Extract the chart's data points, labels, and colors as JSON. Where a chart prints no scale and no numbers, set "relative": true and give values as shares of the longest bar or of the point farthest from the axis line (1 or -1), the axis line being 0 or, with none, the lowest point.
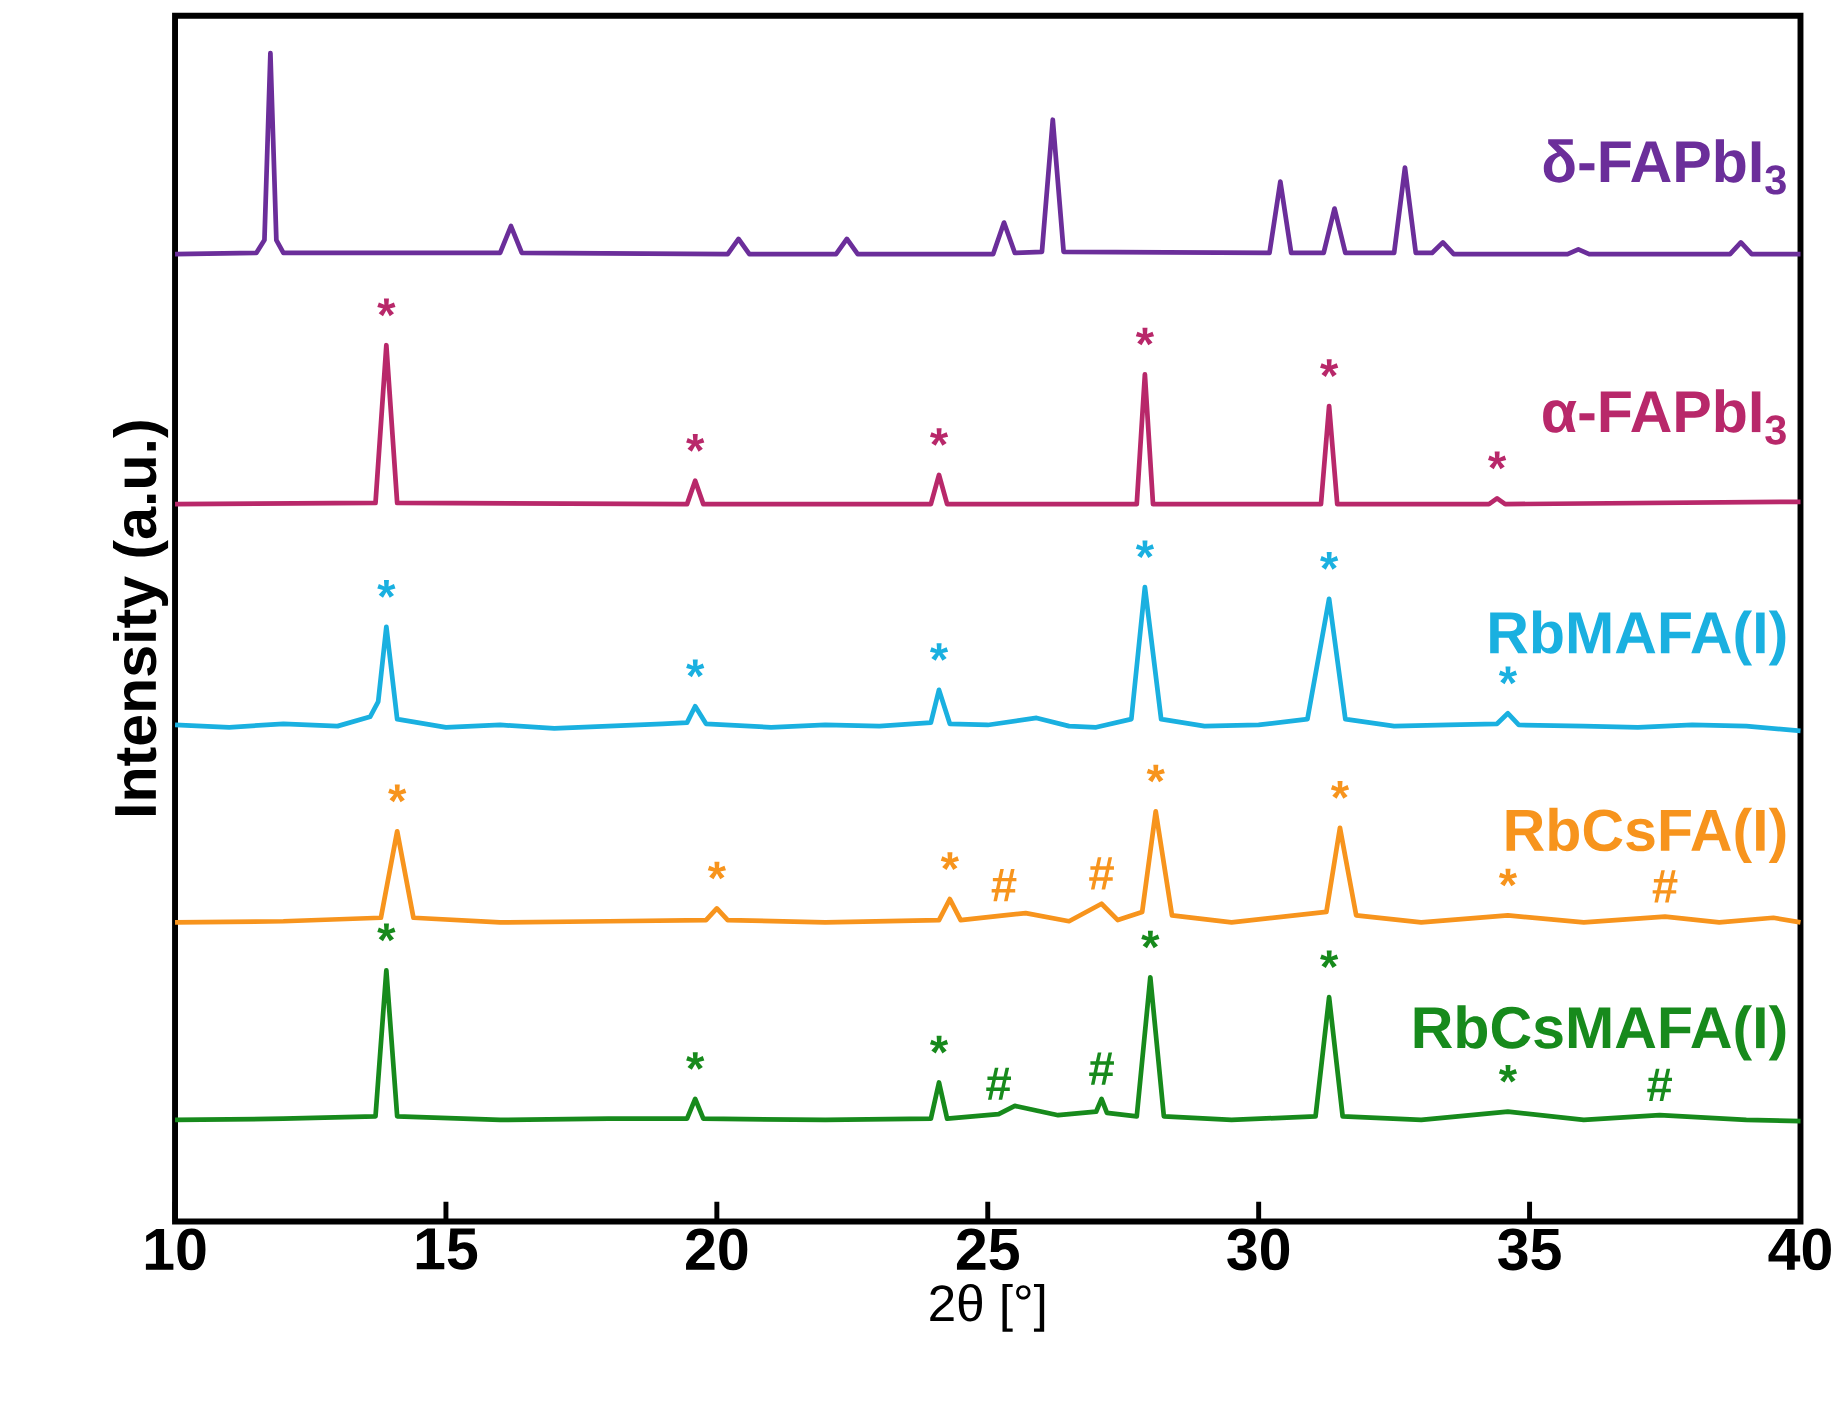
{
  "chart_data": {
    "type": "line",
    "relative": true,
    "xlabel": "2θ [°]",
    "ylabel": "Intensity (a.u.)",
    "xlim": [
      10,
      40
    ],
    "xticks": [
      10,
      15,
      20,
      25,
      30,
      35,
      40
    ],
    "series": [
      {
        "name": "δ-FAPbI$_{3}$",
        "color": "#6b2e9a",
        "x": [
          10,
          11.5,
          11.65,
          11.76,
          11.87,
          12.0,
          16.0,
          16.2,
          16.4,
          20.2,
          20.4,
          20.6,
          22.2,
          22.4,
          22.6,
          25.1,
          25.3,
          25.5,
          26.0,
          26.2,
          26.4,
          30.2,
          30.4,
          30.6,
          31.2,
          31.4,
          31.6,
          32.5,
          32.7,
          32.9,
          33.2,
          33.4,
          33.6,
          35.7,
          35.9,
          36.1,
          38.7,
          38.9,
          39.1,
          40
        ],
        "values": [
          0.828,
          0.829,
          0.84,
          1.0,
          0.84,
          0.829,
          0.829,
          0.852,
          0.829,
          0.828,
          0.841,
          0.828,
          0.828,
          0.841,
          0.828,
          0.828,
          0.855,
          0.829,
          0.83,
          0.943,
          0.83,
          0.829,
          0.89,
          0.829,
          0.829,
          0.867,
          0.829,
          0.829,
          0.902,
          0.829,
          0.829,
          0.838,
          0.828,
          0.828,
          0.832,
          0.828,
          0.828,
          0.838,
          0.828,
          0.828
        ]
      },
      {
        "name": "α-FAPbI$_{3}$",
        "color": "#b8286a",
        "x": [
          10,
          13.7,
          13.9,
          14.1,
          19.45,
          19.6,
          19.75,
          23.95,
          24.1,
          24.25,
          27.75,
          27.9,
          28.05,
          31.15,
          31.3,
          31.45,
          34.25,
          34.4,
          34.55,
          40
        ],
        "values": [
          0.614,
          0.615,
          0.75,
          0.615,
          0.614,
          0.634,
          0.614,
          0.614,
          0.639,
          0.614,
          0.614,
          0.725,
          0.614,
          0.614,
          0.698,
          0.614,
          0.614,
          0.619,
          0.614,
          0.616
        ]
      },
      {
        "name": "RbMAFA(I)",
        "color": "#1ab0e0",
        "x": [
          10,
          11,
          12,
          13,
          13.6,
          13.75,
          13.9,
          14.1,
          15,
          16,
          17,
          18,
          19,
          19.45,
          19.6,
          19.8,
          21,
          22,
          23,
          23.95,
          24.1,
          24.3,
          25,
          25.9,
          26.5,
          27,
          27.65,
          27.9,
          28.2,
          29,
          30,
          30.9,
          31.3,
          31.6,
          32.5,
          33.5,
          34.4,
          34.6,
          34.8,
          36,
          37,
          38,
          39,
          40
        ],
        "values": [
          0.425,
          0.423,
          0.426,
          0.424,
          0.432,
          0.445,
          0.509,
          0.43,
          0.423,
          0.425,
          0.422,
          0.424,
          0.426,
          0.427,
          0.441,
          0.426,
          0.423,
          0.425,
          0.424,
          0.427,
          0.455,
          0.426,
          0.425,
          0.431,
          0.424,
          0.423,
          0.43,
          0.543,
          0.43,
          0.424,
          0.425,
          0.43,
          0.533,
          0.43,
          0.424,
          0.425,
          0.426,
          0.435,
          0.425,
          0.424,
          0.423,
          0.425,
          0.424,
          0.42
        ]
      },
      {
        "name": "RbCsFA(I)",
        "color": "#f7941d",
        "x": [
          10,
          12,
          13.8,
          14.1,
          14.4,
          16,
          18,
          19.8,
          20.0,
          20.2,
          22,
          24.1,
          24.3,
          24.5,
          25.3,
          25.7,
          26.5,
          27.1,
          27.4,
          27.85,
          28.1,
          28.4,
          29.5,
          31.25,
          31.5,
          31.8,
          33,
          34.6,
          36,
          37.5,
          38.5,
          39.5,
          40
        ],
        "values": [
          0.256,
          0.257,
          0.26,
          0.334,
          0.26,
          0.256,
          0.257,
          0.258,
          0.268,
          0.258,
          0.256,
          0.258,
          0.276,
          0.258,
          0.262,
          0.264,
          0.257,
          0.272,
          0.258,
          0.265,
          0.351,
          0.262,
          0.256,
          0.265,
          0.337,
          0.262,
          0.256,
          0.262,
          0.256,
          0.261,
          0.256,
          0.26,
          0.256
        ]
      },
      {
        "name": "RbCsMAFA(I)",
        "color": "#178a1c",
        "x": [
          10,
          12,
          13.7,
          13.9,
          14.1,
          16,
          18,
          19.45,
          19.6,
          19.75,
          22,
          23.95,
          24.1,
          24.25,
          25.2,
          25.5,
          26.3,
          27.0,
          27.1,
          27.2,
          27.75,
          28.0,
          28.25,
          29.5,
          31.05,
          31.3,
          31.55,
          33,
          34.6,
          36,
          37.4,
          39,
          40
        ],
        "values": [
          0.087,
          0.088,
          0.09,
          0.215,
          0.09,
          0.087,
          0.088,
          0.088,
          0.105,
          0.088,
          0.087,
          0.088,
          0.119,
          0.088,
          0.092,
          0.099,
          0.091,
          0.094,
          0.105,
          0.093,
          0.09,
          0.209,
          0.09,
          0.087,
          0.09,
          0.192,
          0.09,
          0.087,
          0.094,
          0.087,
          0.091,
          0.087,
          0.086
        ]
      }
    ],
    "annotations": [
      {
        "text": "*",
        "x": 13.9,
        "y": 0.75
      },
      {
        "text": "*",
        "x": 19.6,
        "y": 0.634
      },
      {
        "text": "*",
        "x": 24.1,
        "y": 0.639
      },
      {
        "text": "*",
        "x": 27.9,
        "y": 0.725
      },
      {
        "text": "*",
        "x": 31.3,
        "y": 0.698
      },
      {
        "text": "*",
        "x": 34.4,
        "y": 0.619
      },
      {
        "text": "*",
        "x": 13.9,
        "y": 0.509
      },
      {
        "text": "*",
        "x": 19.6,
        "y": 0.441
      },
      {
        "text": "*",
        "x": 24.1,
        "y": 0.455
      },
      {
        "text": "*",
        "x": 27.9,
        "y": 0.543
      },
      {
        "text": "*",
        "x": 31.3,
        "y": 0.533
      },
      {
        "text": "*",
        "x": 34.6,
        "y": 0.435
      },
      {
        "text": "*",
        "x": 14.1,
        "y": 0.334
      },
      {
        "text": "*",
        "x": 20.0,
        "y": 0.268
      },
      {
        "text": "*",
        "x": 24.3,
        "y": 0.276
      },
      {
        "text": "*",
        "x": 28.1,
        "y": 0.351
      },
      {
        "text": "*",
        "x": 31.5,
        "y": 0.337
      },
      {
        "text": "*",
        "x": 34.6,
        "y": 0.262
      },
      {
        "text": "#",
        "x": 25.3,
        "y": 0.262
      },
      {
        "text": "#",
        "x": 27.1,
        "y": 0.272
      },
      {
        "text": "#",
        "x": 37.5,
        "y": 0.261
      },
      {
        "text": "*",
        "x": 13.9,
        "y": 0.215
      },
      {
        "text": "*",
        "x": 19.6,
        "y": 0.105
      },
      {
        "text": "*",
        "x": 24.1,
        "y": 0.119
      },
      {
        "text": "*",
        "x": 28.0,
        "y": 0.209
      },
      {
        "text": "*",
        "x": 31.3,
        "y": 0.192
      },
      {
        "text": "*",
        "x": 34.6,
        "y": 0.094
      },
      {
        "text": "#",
        "x": 25.2,
        "y": 0.092
      },
      {
        "text": "#",
        "x": 27.1,
        "y": 0.105
      },
      {
        "text": "#",
        "x": 37.4,
        "y": 0.091
      }
    ]
  }
}
